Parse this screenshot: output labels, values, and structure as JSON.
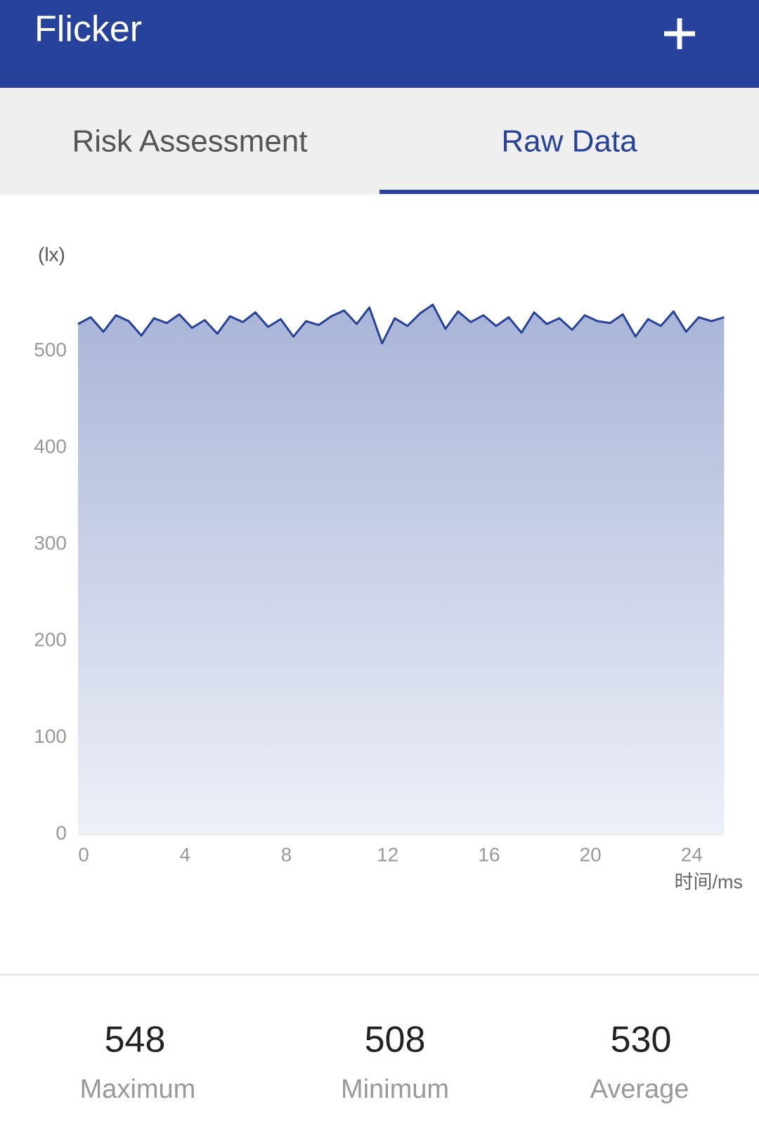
{
  "header": {
    "title": "Flicker"
  },
  "tabs": [
    "Risk Assessment",
    "Raw Data"
  ],
  "chart_data": {
    "type": "area",
    "y_unit": "(lx)",
    "x_label": "时间/ms",
    "x": [
      0,
      0.5,
      1,
      1.5,
      2,
      2.5,
      3,
      3.5,
      4,
      4.5,
      5,
      5.5,
      6,
      6.5,
      7,
      7.5,
      8,
      8.5,
      9,
      9.5,
      10,
      10.5,
      11,
      11.5,
      12,
      12.5,
      13,
      13.5,
      14,
      14.5,
      15,
      15.5,
      16,
      16.5,
      17,
      17.5,
      18,
      18.5,
      19,
      19.5,
      20,
      20.5,
      21,
      21.5,
      22,
      22.5,
      23,
      23.5,
      24,
      24.5,
      25,
      25.5
    ],
    "series": [
      {
        "color": "#26429b",
        "values": [
          528,
          535,
          520,
          537,
          531,
          516,
          534,
          529,
          538,
          524,
          532,
          518,
          536,
          530,
          540,
          525,
          533,
          515,
          531,
          527,
          536,
          542,
          528,
          545,
          508,
          534,
          526,
          539,
          548,
          523,
          541,
          530,
          537,
          526,
          535,
          519,
          540,
          528,
          534,
          522,
          537,
          531,
          529,
          538,
          515,
          533,
          526,
          541,
          520,
          535,
          531,
          535
        ]
      }
    ],
    "xlim": [
      0,
      25.6
    ],
    "xticks": [
      0,
      4,
      8,
      12,
      16,
      20,
      24
    ],
    "ylim": [
      0,
      560
    ],
    "yticks": [
      0,
      100,
      200,
      300,
      400,
      500
    ]
  },
  "stats": [
    {
      "value": "548",
      "label": "Maximum"
    },
    {
      "value": "508",
      "label": "Minimum"
    },
    {
      "value": "530",
      "label": "Average"
    }
  ]
}
